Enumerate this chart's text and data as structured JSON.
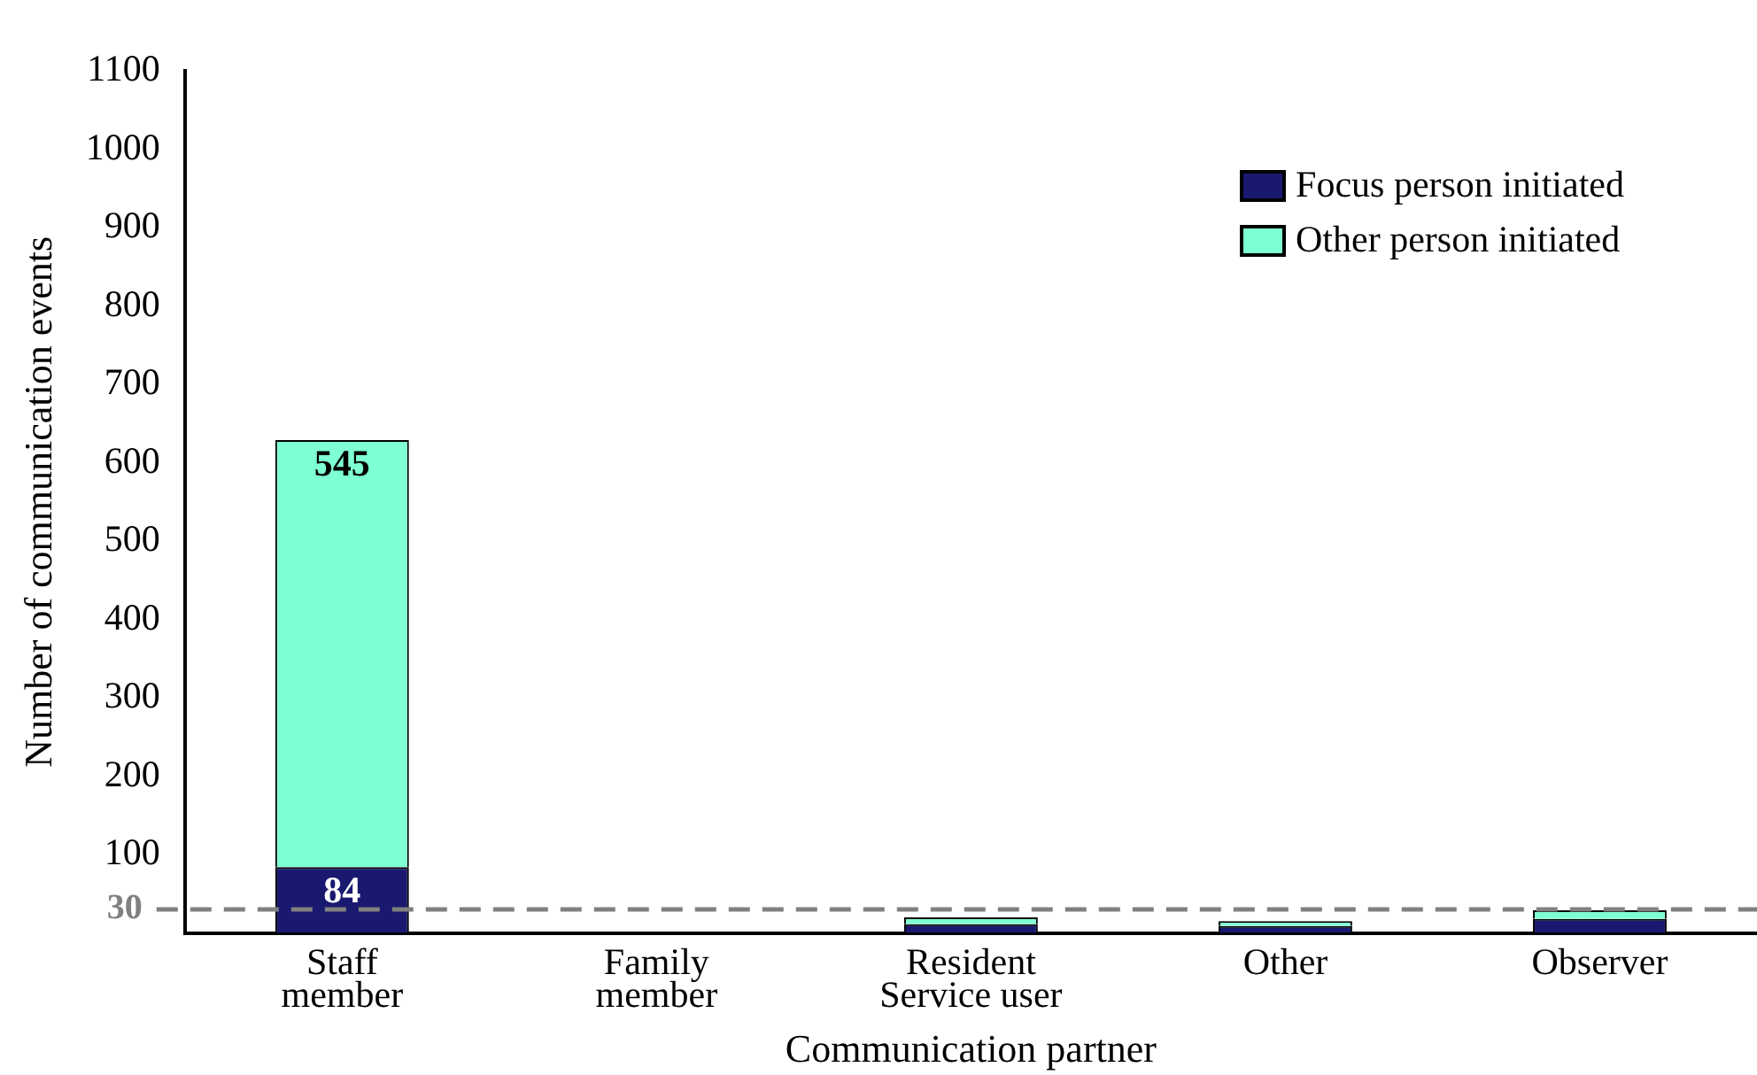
{
  "chart_data": {
    "type": "bar",
    "stacked": true,
    "xlabel": "Communication partner",
    "ylabel": "Number of communication events",
    "categories": [
      "Staff\nmember",
      "Family\nmember",
      "Resident\nService user",
      "Other",
      "Observer"
    ],
    "series": [
      {
        "name": "Focus person initiated",
        "color": "#191970",
        "values": [
          84,
          0,
          11,
          9,
          18
        ],
        "value_labels": [
          "84",
          null,
          null,
          null,
          null
        ]
      },
      {
        "name": "Other person initiated",
        "color": "#7fffd4",
        "values": [
          545,
          0,
          9,
          6,
          11
        ],
        "value_labels": [
          "545",
          null,
          null,
          null,
          null
        ]
      }
    ],
    "ylim": [
      0,
      1100
    ],
    "yticks": [
      100,
      200,
      300,
      400,
      500,
      600,
      700,
      800,
      900,
      1000,
      1100
    ],
    "ref_lines": [
      {
        "axis": "y",
        "value": 30,
        "label": "30",
        "color": "#808080",
        "line_style": "dashed"
      }
    ],
    "grid": false,
    "legend": "top right"
  }
}
